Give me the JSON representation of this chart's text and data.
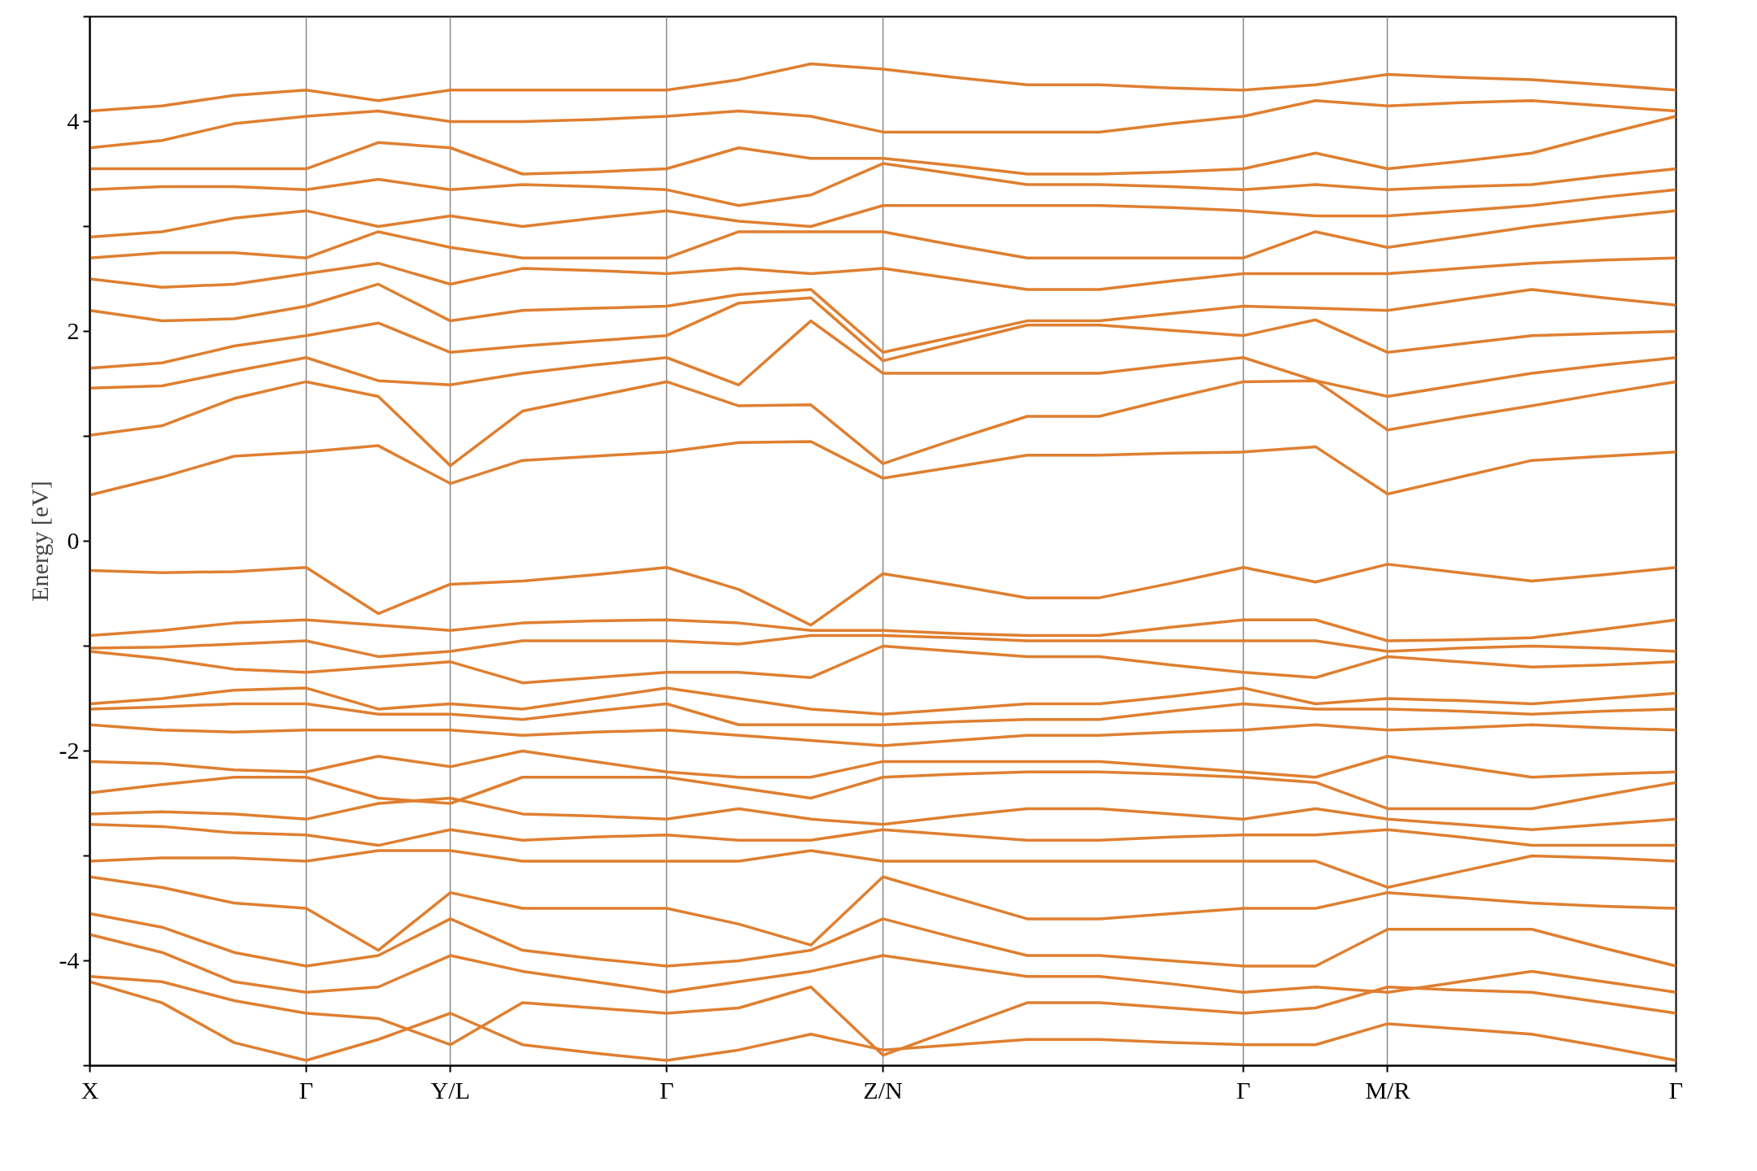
{
  "chart_data": {
    "type": "line",
    "ylabel": "Energy [eV]",
    "grid": "x",
    "marker": "none",
    "line_style": "solid",
    "ylim": [
      -5,
      5
    ],
    "yticks": [
      {
        "value": -5,
        "label": null
      },
      -4,
      {
        "value": -3,
        "label": null
      },
      -2,
      {
        "value": -1,
        "label": null
      },
      0,
      {
        "value": 1,
        "label": null
      },
      2,
      {
        "value": 3,
        "label": null
      },
      4,
      {
        "value": 5,
        "label": null
      }
    ],
    "categories": [
      "X",
      null,
      null,
      "Γ",
      null,
      "Y/L",
      null,
      null,
      "Γ",
      null,
      null,
      "Z/N",
      null,
      null,
      null,
      null,
      "Γ",
      null,
      "M/R",
      null,
      null,
      null,
      "Γ"
    ],
    "series": [
      {
        "color": "#df7f30",
        "values": [
          0.44,
          0.61,
          0.81,
          0.85,
          0.91,
          0.55,
          0.77,
          0.81,
          0.85,
          0.94,
          0.95,
          0.6,
          0.71,
          0.82,
          0.82,
          0.84,
          0.85,
          0.9,
          0.45,
          0.61,
          0.77,
          0.81,
          0.85
        ]
      },
      {
        "color": "#df7f30",
        "values": [
          1.01,
          1.1,
          1.36,
          1.52,
          1.38,
          0.72,
          1.24,
          1.38,
          1.52,
          1.29,
          1.3,
          0.74,
          0.97,
          1.19,
          1.19,
          1.36,
          1.52,
          1.53,
          1.06,
          1.18,
          1.29,
          1.41,
          1.52
        ]
      },
      {
        "color": "#df7f30",
        "values": [
          1.46,
          1.48,
          1.62,
          1.75,
          1.53,
          1.49,
          1.6,
          1.68,
          1.75,
          1.49,
          2.1,
          1.6,
          1.6,
          1.6,
          1.6,
          1.68,
          1.75,
          1.53,
          1.38,
          1.49,
          1.6,
          1.68,
          1.75
        ]
      },
      {
        "color": "#df7f30",
        "values": [
          1.65,
          1.7,
          1.86,
          1.96,
          2.08,
          1.8,
          1.86,
          1.91,
          1.96,
          2.27,
          2.32,
          1.72,
          1.89,
          2.06,
          2.06,
          2.01,
          1.96,
          2.11,
          1.8,
          1.88,
          1.96,
          1.98,
          2.0
        ]
      },
      {
        "color": "#df7f30",
        "values": [
          2.2,
          2.1,
          2.12,
          2.24,
          2.45,
          2.1,
          2.2,
          2.22,
          2.24,
          2.35,
          2.4,
          1.8,
          1.95,
          2.1,
          2.1,
          2.17,
          2.24,
          2.22,
          2.2,
          2.3,
          2.4,
          2.32,
          2.25
        ]
      },
      {
        "color": "#df7f30",
        "values": [
          2.5,
          2.42,
          2.45,
          2.55,
          2.65,
          2.45,
          2.6,
          2.58,
          2.55,
          2.6,
          2.55,
          2.6,
          2.5,
          2.4,
          2.4,
          2.48,
          2.55,
          2.55,
          2.55,
          2.6,
          2.65,
          2.68,
          2.7
        ]
      },
      {
        "color": "#df7f30",
        "values": [
          2.7,
          2.75,
          2.75,
          2.7,
          2.95,
          2.8,
          2.7,
          2.7,
          2.7,
          2.95,
          2.95,
          2.95,
          2.82,
          2.7,
          2.7,
          2.7,
          2.7,
          2.95,
          2.8,
          2.9,
          3.0,
          3.08,
          3.15
        ]
      },
      {
        "color": "#df7f30",
        "values": [
          2.9,
          2.95,
          3.08,
          3.15,
          3.0,
          3.1,
          3.0,
          3.08,
          3.15,
          3.05,
          3.0,
          3.2,
          3.2,
          3.2,
          3.2,
          3.18,
          3.15,
          3.1,
          3.1,
          3.15,
          3.2,
          3.28,
          3.35
        ]
      },
      {
        "color": "#df7f30",
        "values": [
          3.35,
          3.38,
          3.38,
          3.35,
          3.45,
          3.35,
          3.4,
          3.38,
          3.35,
          3.2,
          3.3,
          3.6,
          3.5,
          3.4,
          3.4,
          3.38,
          3.35,
          3.4,
          3.35,
          3.38,
          3.4,
          3.48,
          3.55
        ]
      },
      {
        "color": "#df7f30",
        "values": [
          3.55,
          3.55,
          3.55,
          3.55,
          3.8,
          3.75,
          3.5,
          3.52,
          3.55,
          3.75,
          3.65,
          3.65,
          3.58,
          3.5,
          3.5,
          3.52,
          3.55,
          3.7,
          3.55,
          3.62,
          3.7,
          3.88,
          4.05
        ]
      },
      {
        "color": "#df7f30",
        "values": [
          3.75,
          3.82,
          3.98,
          4.05,
          4.1,
          4.0,
          4.0,
          4.02,
          4.05,
          4.1,
          4.05,
          3.9,
          3.9,
          3.9,
          3.9,
          3.98,
          4.05,
          4.2,
          4.15,
          4.18,
          4.2,
          4.15,
          4.1
        ]
      },
      {
        "color": "#df7f30",
        "values": [
          4.1,
          4.15,
          4.25,
          4.3,
          4.2,
          4.3,
          4.3,
          4.3,
          4.3,
          4.4,
          4.55,
          4.5,
          4.42,
          4.35,
          4.35,
          4.32,
          4.3,
          4.35,
          4.45,
          4.42,
          4.4,
          4.35,
          4.3
        ]
      },
      {
        "color": "#df7f30",
        "values": [
          -0.28,
          -0.3,
          -0.29,
          -0.25,
          -0.69,
          -0.41,
          -0.38,
          -0.32,
          -0.25,
          -0.46,
          -0.8,
          -0.31,
          -0.42,
          -0.54,
          -0.54,
          -0.4,
          -0.25,
          -0.39,
          -0.22,
          -0.3,
          -0.38,
          -0.32,
          -0.25
        ]
      },
      {
        "color": "#df7f30",
        "values": [
          -0.9,
          -0.85,
          -0.78,
          -0.75,
          -0.8,
          -0.85,
          -0.78,
          -0.76,
          -0.75,
          -0.78,
          -0.85,
          -0.85,
          -0.88,
          -0.9,
          -0.9,
          -0.82,
          -0.75,
          -0.75,
          -0.95,
          -0.94,
          -0.92,
          -0.84,
          -0.75
        ]
      },
      {
        "color": "#df7f30",
        "values": [
          -1.02,
          -1.01,
          -0.98,
          -0.95,
          -1.1,
          -1.05,
          -0.95,
          -0.95,
          -0.95,
          -0.98,
          -0.9,
          -0.9,
          -0.92,
          -0.95,
          -0.95,
          -0.95,
          -0.95,
          -0.95,
          -1.05,
          -1.02,
          -1.0,
          -1.02,
          -1.05
        ]
      },
      {
        "color": "#df7f30",
        "values": [
          -1.05,
          -1.12,
          -1.22,
          -1.25,
          -1.2,
          -1.15,
          -1.35,
          -1.3,
          -1.25,
          -1.25,
          -1.3,
          -1.0,
          -1.05,
          -1.1,
          -1.1,
          -1.18,
          -1.25,
          -1.3,
          -1.1,
          -1.15,
          -1.2,
          -1.18,
          -1.15
        ]
      },
      {
        "color": "#df7f30",
        "values": [
          -1.55,
          -1.5,
          -1.42,
          -1.4,
          -1.6,
          -1.55,
          -1.6,
          -1.5,
          -1.4,
          -1.5,
          -1.6,
          -1.65,
          -1.6,
          -1.55,
          -1.55,
          -1.48,
          -1.4,
          -1.55,
          -1.5,
          -1.52,
          -1.55,
          -1.5,
          -1.45
        ]
      },
      {
        "color": "#df7f30",
        "values": [
          -1.6,
          -1.58,
          -1.55,
          -1.55,
          -1.65,
          -1.65,
          -1.7,
          -1.62,
          -1.55,
          -1.75,
          -1.75,
          -1.75,
          -1.72,
          -1.7,
          -1.7,
          -1.62,
          -1.55,
          -1.6,
          -1.6,
          -1.62,
          -1.65,
          -1.62,
          -1.6
        ]
      },
      {
        "color": "#df7f30",
        "values": [
          -1.75,
          -1.8,
          -1.82,
          -1.8,
          -1.8,
          -1.8,
          -1.85,
          -1.82,
          -1.8,
          -1.85,
          -1.9,
          -1.95,
          -1.9,
          -1.85,
          -1.85,
          -1.82,
          -1.8,
          -1.75,
          -1.8,
          -1.78,
          -1.75,
          -1.78,
          -1.8
        ]
      },
      {
        "color": "#df7f30",
        "values": [
          -2.1,
          -2.12,
          -2.18,
          -2.2,
          -2.05,
          -2.15,
          -2.0,
          -2.1,
          -2.2,
          -2.25,
          -2.25,
          -2.1,
          -2.1,
          -2.1,
          -2.1,
          -2.15,
          -2.2,
          -2.25,
          -2.05,
          -2.15,
          -2.25,
          -2.22,
          -2.2
        ]
      },
      {
        "color": "#df7f30",
        "values": [
          -2.4,
          -2.32,
          -2.25,
          -2.25,
          -2.45,
          -2.5,
          -2.25,
          -2.25,
          -2.25,
          -2.35,
          -2.45,
          -2.25,
          -2.22,
          -2.2,
          -2.2,
          -2.22,
          -2.25,
          -2.3,
          -2.55,
          -2.55,
          -2.55,
          -2.42,
          -2.3
        ]
      },
      {
        "color": "#df7f30",
        "values": [
          -2.6,
          -2.58,
          -2.6,
          -2.65,
          -2.5,
          -2.45,
          -2.6,
          -2.62,
          -2.65,
          -2.55,
          -2.65,
          -2.7,
          -2.62,
          -2.55,
          -2.55,
          -2.6,
          -2.65,
          -2.55,
          -2.65,
          -2.7,
          -2.75,
          -2.7,
          -2.65
        ]
      },
      {
        "color": "#df7f30",
        "values": [
          -2.7,
          -2.72,
          -2.78,
          -2.8,
          -2.9,
          -2.75,
          -2.85,
          -2.82,
          -2.8,
          -2.85,
          -2.85,
          -2.75,
          -2.8,
          -2.85,
          -2.85,
          -2.82,
          -2.8,
          -2.8,
          -2.75,
          -2.82,
          -2.9,
          -2.9,
          -2.9
        ]
      },
      {
        "color": "#df7f30",
        "values": [
          -3.05,
          -3.02,
          -3.02,
          -3.05,
          -2.95,
          -2.95,
          -3.05,
          -3.05,
          -3.05,
          -3.05,
          -2.95,
          -3.05,
          -3.05,
          -3.05,
          -3.05,
          -3.05,
          -3.05,
          -3.05,
          -3.3,
          -3.15,
          -3.0,
          -3.02,
          -3.05
        ]
      },
      {
        "color": "#df7f30",
        "values": [
          -3.2,
          -3.3,
          -3.45,
          -3.5,
          -3.9,
          -3.35,
          -3.5,
          -3.5,
          -3.5,
          -3.65,
          -3.85,
          -3.2,
          -3.4,
          -3.6,
          -3.6,
          -3.55,
          -3.5,
          -3.5,
          -3.35,
          -3.4,
          -3.45,
          -3.48,
          -3.5
        ]
      },
      {
        "color": "#df7f30",
        "values": [
          -3.55,
          -3.68,
          -3.92,
          -4.05,
          -3.95,
          -3.6,
          -3.9,
          -3.98,
          -4.05,
          -4.0,
          -3.9,
          -3.6,
          -3.78,
          -3.95,
          -3.95,
          -4.0,
          -4.05,
          -4.05,
          -3.7,
          -3.7,
          -3.7,
          -3.88,
          -4.05
        ]
      },
      {
        "color": "#df7f30",
        "values": [
          -3.75,
          -3.92,
          -4.2,
          -4.3,
          -4.25,
          -3.95,
          -4.1,
          -4.2,
          -4.3,
          -4.2,
          -4.1,
          -3.95,
          -4.05,
          -4.15,
          -4.15,
          -4.22,
          -4.3,
          -4.25,
          -4.3,
          -4.2,
          -4.1,
          -4.2,
          -4.3
        ]
      },
      {
        "color": "#df7f30",
        "values": [
          -4.15,
          -4.2,
          -4.38,
          -4.5,
          -4.55,
          -4.8,
          -4.4,
          -4.45,
          -4.5,
          -4.45,
          -4.25,
          -4.9,
          -4.65,
          -4.4,
          -4.4,
          -4.45,
          -4.5,
          -4.45,
          -4.25,
          -4.28,
          -4.3,
          -4.4,
          -4.5
        ]
      },
      {
        "color": "#df7f30",
        "values": [
          -4.2,
          -4.4,
          -4.78,
          -4.95,
          -4.75,
          -4.5,
          -4.8,
          -4.88,
          -4.95,
          -4.85,
          -4.7,
          -4.85,
          -4.8,
          -4.75,
          -4.75,
          -4.78,
          -4.8,
          -4.8,
          -4.6,
          -4.65,
          -4.7,
          -4.82,
          -4.95
        ]
      }
    ]
  }
}
